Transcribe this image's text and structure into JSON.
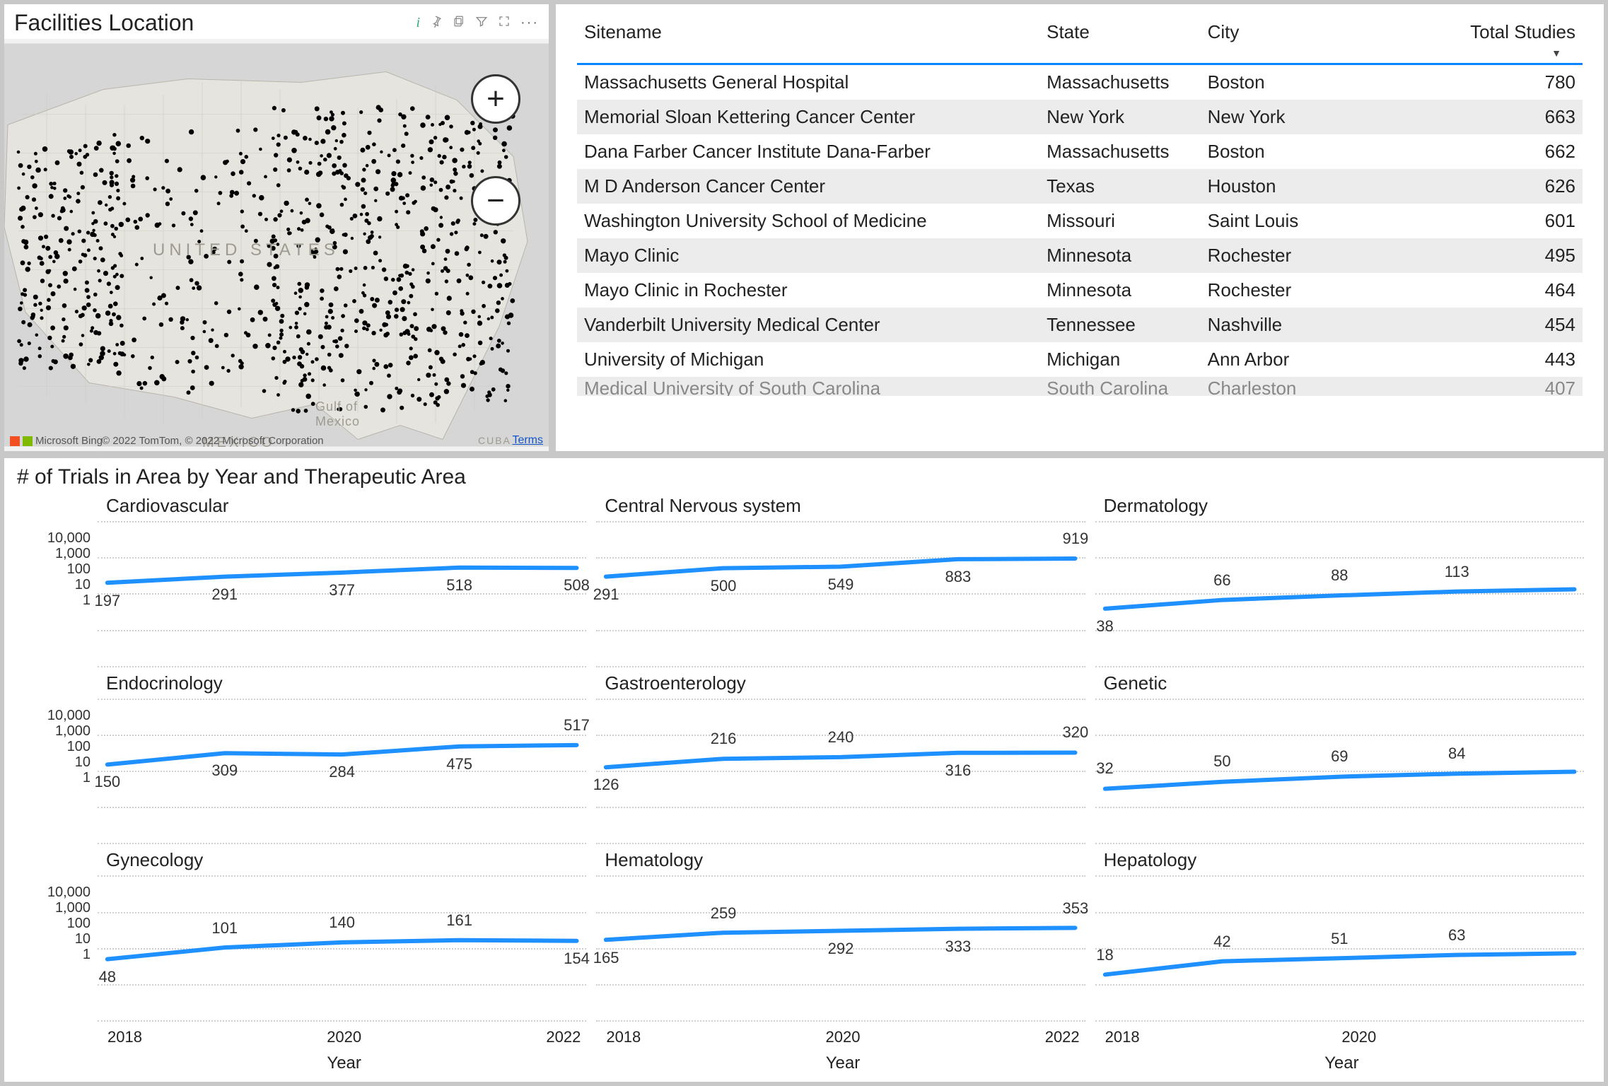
{
  "map": {
    "title": "Facilities Location",
    "toolbar_icons": [
      "info",
      "pin",
      "copy",
      "filter",
      "focus",
      "more"
    ],
    "country_label": "UNITED STATES",
    "gulf_label": "Gulf of\nMexico",
    "mexico_label": "MEXICO",
    "cuba_label": "CUBA",
    "attribution_prefix": "Microsoft Bing",
    "attribution": "© 2022 TomTom, © 2022 Microsoft Corporation",
    "terms": "Terms",
    "zoom_in": "+",
    "zoom_out": "−",
    "land_color": "#e6e4df",
    "water_color": "#d6d6d6",
    "dot_color": "#000000"
  },
  "table": {
    "columns": [
      "Sitename",
      "State",
      "City",
      "Total Studies"
    ],
    "sort_indicator": "▼",
    "rows": [
      [
        "Massachusetts General Hospital",
        "Massachusetts",
        "Boston",
        "780"
      ],
      [
        "Memorial Sloan Kettering Cancer Center",
        "New York",
        "New York",
        "663"
      ],
      [
        "Dana Farber Cancer Institute Dana-Farber",
        "Massachusetts",
        "Boston",
        "662"
      ],
      [
        "M D Anderson Cancer Center",
        "Texas",
        "Houston",
        "626"
      ],
      [
        "Washington University School of Medicine",
        "Missouri",
        "Saint Louis",
        "601"
      ],
      [
        "Mayo Clinic",
        "Minnesota",
        "Rochester",
        "495"
      ],
      [
        "Mayo Clinic in Rochester",
        "Minnesota",
        "Rochester",
        "464"
      ],
      [
        "Vanderbilt University Medical Center",
        "Tennessee",
        "Nashville",
        "454"
      ],
      [
        "University of Michigan",
        "Michigan",
        "Ann Arbor",
        "443"
      ],
      [
        "Medical University of South Carolina",
        "South Carolina",
        "Charleston",
        "407"
      ]
    ]
  },
  "charts": {
    "title": "# of Trials in Area by Year and Therapeutic Area",
    "y_ticks": [
      "10,000",
      "1,000",
      "100",
      "10",
      "1"
    ],
    "y_values": [
      10000,
      1000,
      100,
      10,
      1
    ],
    "x_years": [
      "2018",
      "2020",
      "2022"
    ],
    "x_label": "Year",
    "ylim_log": [
      1,
      10000
    ],
    "line_color": "#1e90ff",
    "grid_color": "#d0d0d0",
    "series": [
      {
        "name": "Cardiovascular",
        "years": [
          2018,
          2019,
          2020,
          2021,
          2022
        ],
        "values": [
          197,
          291,
          377,
          518,
          508
        ],
        "labels": [
          {
            "i": 0,
            "v": 197,
            "pos": "below"
          },
          {
            "i": 1,
            "v": 291,
            "pos": "below"
          },
          {
            "i": 2,
            "v": 377,
            "pos": "below"
          },
          {
            "i": 3,
            "v": 518,
            "pos": "below"
          },
          {
            "i": 4,
            "v": 508,
            "pos": "below"
          }
        ]
      },
      {
        "name": "Central Nervous system",
        "years": [
          2018,
          2019,
          2020,
          2021,
          2022
        ],
        "values": [
          291,
          500,
          549,
          883,
          919
        ],
        "labels": [
          {
            "i": 0,
            "v": 291,
            "pos": "below"
          },
          {
            "i": 1,
            "v": 500,
            "pos": "below"
          },
          {
            "i": 2,
            "v": 549,
            "pos": "below"
          },
          {
            "i": 3,
            "v": 883,
            "pos": "below"
          },
          {
            "i": 4,
            "v": 919,
            "pos": "above"
          }
        ]
      },
      {
        "name": "Dermatology",
        "years": [
          2018,
          2019,
          2020,
          2021,
          2022
        ],
        "values": [
          38,
          66,
          88,
          113,
          130
        ],
        "labels": [
          {
            "i": 0,
            "v": 38,
            "pos": "below"
          },
          {
            "i": 1,
            "v": 66,
            "pos": "above"
          },
          {
            "i": 2,
            "v": 88,
            "pos": "above"
          },
          {
            "i": 3,
            "v": 113,
            "pos": "above"
          }
        ]
      },
      {
        "name": "Endocrinology",
        "years": [
          2018,
          2019,
          2020,
          2021,
          2022
        ],
        "values": [
          150,
          309,
          284,
          475,
          517
        ],
        "labels": [
          {
            "i": 0,
            "v": 150,
            "pos": "below"
          },
          {
            "i": 1,
            "v": 309,
            "pos": "below"
          },
          {
            "i": 2,
            "v": 284,
            "pos": "below"
          },
          {
            "i": 3,
            "v": 475,
            "pos": "below"
          },
          {
            "i": 4,
            "v": 517,
            "pos": "above"
          }
        ]
      },
      {
        "name": "Gastroenterology",
        "years": [
          2018,
          2019,
          2020,
          2021,
          2022
        ],
        "values": [
          126,
          216,
          240,
          316,
          320
        ],
        "labels": [
          {
            "i": 0,
            "v": 126,
            "pos": "below"
          },
          {
            "i": 1,
            "v": 216,
            "pos": "above"
          },
          {
            "i": 2,
            "v": 240,
            "pos": "above"
          },
          {
            "i": 3,
            "v": 316,
            "pos": "below"
          },
          {
            "i": 4,
            "v": 320,
            "pos": "above"
          }
        ]
      },
      {
        "name": "Genetic",
        "years": [
          2018,
          2019,
          2020,
          2021,
          2022
        ],
        "values": [
          32,
          50,
          69,
          84,
          95
        ],
        "labels": [
          {
            "i": 0,
            "v": 32,
            "pos": "above"
          },
          {
            "i": 1,
            "v": 50,
            "pos": "above"
          },
          {
            "i": 2,
            "v": 69,
            "pos": "above"
          },
          {
            "i": 3,
            "v": 84,
            "pos": "above"
          }
        ]
      },
      {
        "name": "Gynecology",
        "years": [
          2018,
          2019,
          2020,
          2021,
          2022
        ],
        "values": [
          48,
          101,
          140,
          161,
          154
        ],
        "labels": [
          {
            "i": 0,
            "v": 48,
            "pos": "below"
          },
          {
            "i": 1,
            "v": 101,
            "pos": "above"
          },
          {
            "i": 2,
            "v": 140,
            "pos": "above"
          },
          {
            "i": 3,
            "v": 161,
            "pos": "above"
          },
          {
            "i": 4,
            "v": 154,
            "pos": "below"
          }
        ]
      },
      {
        "name": "Hematology",
        "years": [
          2018,
          2019,
          2020,
          2021,
          2022
        ],
        "values": [
          165,
          259,
          292,
          333,
          353
        ],
        "labels": [
          {
            "i": 0,
            "v": 165,
            "pos": "below"
          },
          {
            "i": 1,
            "v": 259,
            "pos": "above"
          },
          {
            "i": 2,
            "v": 292,
            "pos": "below"
          },
          {
            "i": 3,
            "v": 333,
            "pos": "below"
          },
          {
            "i": 4,
            "v": 353,
            "pos": "above"
          }
        ]
      },
      {
        "name": "Hepatology",
        "years": [
          2018,
          2019,
          2020,
          2021,
          2022
        ],
        "values": [
          18,
          42,
          51,
          63,
          70
        ],
        "labels": [
          {
            "i": 0,
            "v": 18,
            "pos": "above"
          },
          {
            "i": 1,
            "v": 42,
            "pos": "above"
          },
          {
            "i": 2,
            "v": 51,
            "pos": "above"
          },
          {
            "i": 3,
            "v": 63,
            "pos": "above"
          }
        ]
      }
    ]
  }
}
